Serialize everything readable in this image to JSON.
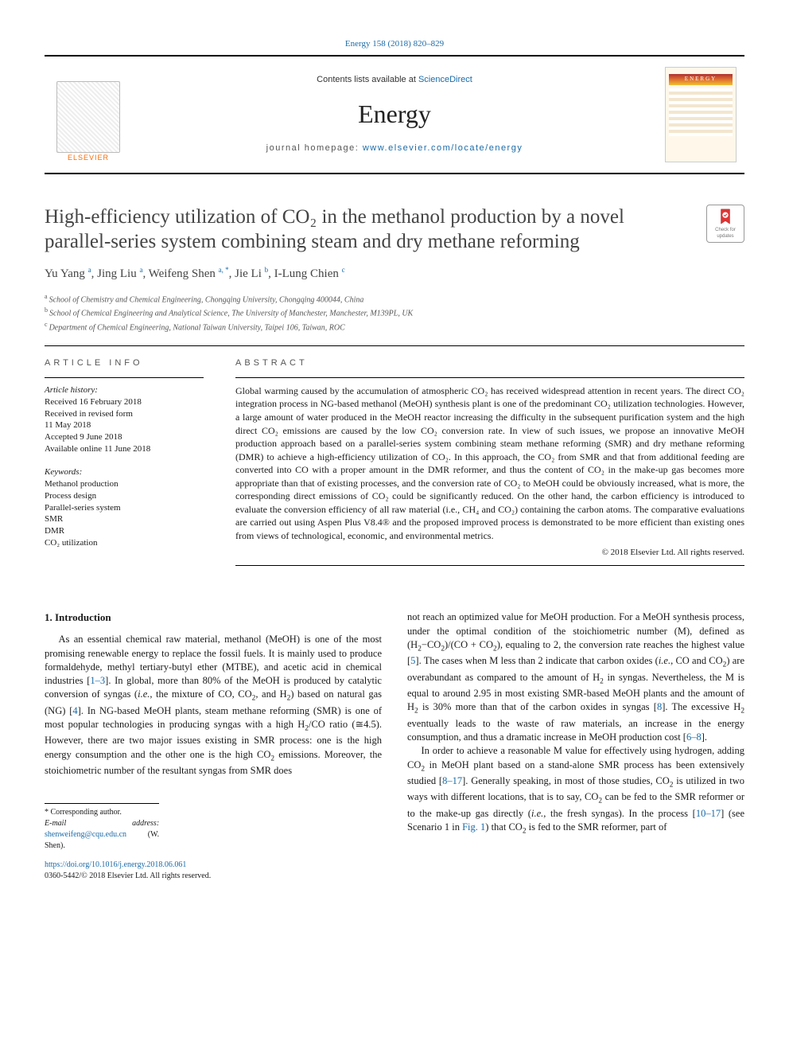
{
  "citation": "Energy 158 (2018) 820–829",
  "masthead": {
    "contents_prefix": "Contents lists available at ",
    "contents_link": "ScienceDirect",
    "journal": "Energy",
    "homepage_prefix": "journal homepage: ",
    "homepage_url": "www.elsevier.com/locate/energy",
    "publisher_word": "ELSEVIER",
    "cover_word": "ENERGY"
  },
  "check_badge": {
    "line1": "Check for",
    "line2": "updates"
  },
  "title": "High-efficiency utilization of CO₂ in the methanol production by a novel parallel-series system combining steam and dry methane reforming",
  "authors_html": "Yu Yang <sup>a</sup>, Jing Liu <sup>a</sup>, Weifeng Shen <sup>a, <span class='ast'>*</span></sup>, Jie Li <sup>b</sup>, I-Lung Chien <sup>c</sup>",
  "affiliations": [
    {
      "tag": "a",
      "text": "School of Chemistry and Chemical Engineering, Chongqing University, Chongqing 400044, China"
    },
    {
      "tag": "b",
      "text": "School of Chemical Engineering and Analytical Science, The University of Manchester, Manchester, M139PL, UK"
    },
    {
      "tag": "c",
      "text": "Department of Chemical Engineering, National Taiwan University, Taipei 106, Taiwan, ROC"
    }
  ],
  "article_info": {
    "heading": "ARTICLE INFO",
    "history_label": "Article history:",
    "history": [
      "Received 16 February 2018",
      "Received in revised form",
      "11 May 2018",
      "Accepted 9 June 2018",
      "Available online 11 June 2018"
    ],
    "keywords_label": "Keywords:",
    "keywords": [
      "Methanol production",
      "Process design",
      "Parallel-series system",
      "SMR",
      "DMR",
      "CO₂ utilization"
    ]
  },
  "abstract": {
    "heading": "ABSTRACT",
    "body": "Global warming caused by the accumulation of atmospheric CO₂ has received widespread attention in recent years. The direct CO₂ integration process in NG-based methanol (MeOH) synthesis plant is one of the predominant CO₂ utilization technologies. However, a large amount of water produced in the MeOH reactor increasing the difficulty in the subsequent purification system and the high direct CO₂ emissions are caused by the low CO₂ conversion rate. In view of such issues, we propose an innovative MeOH production approach based on a parallel-series system combining steam methane reforming (SMR) and dry methane reforming (DMR) to achieve a high-efficiency utilization of CO₂. In this approach, the CO₂ from SMR and that from additional feeding are converted into CO with a proper amount in the DMR reformer, and thus the content of CO₂ in the make-up gas becomes more appropriate than that of existing processes, and the conversion rate of CO₂ to MeOH could be obviously increased, what is more, the corresponding direct emissions of CO₂ could be significantly reduced. On the other hand, the carbon efficiency is introduced to evaluate the conversion efficiency of all raw material (i.e., CH₄ and CO₂) containing the carbon atoms. The comparative evaluations are carried out using Aspen Plus V8.4® and the proposed improved process is demonstrated to be more efficient than existing ones from views of technological, economic, and environmental metrics.",
    "copyright": "© 2018 Elsevier Ltd. All rights reserved."
  },
  "intro": {
    "heading": "1.  Introduction",
    "col1_html": "As an essential chemical raw material, methanol (MeOH) is one of the most promising renewable energy to replace the fossil fuels. It is mainly used to produce formaldehyde, methyl tertiary-butyl ether (MTBE), and acetic acid in chemical industries [<span class='ref'>1–3</span>]. In global, more than 80% of the MeOH is produced by catalytic conversion of syngas (<i>i.e.</i>, the mixture of CO, CO<sub>2</sub>, and H<sub>2</sub>) based on natural gas (NG) [<span class='ref'>4</span>]. In NG-based MeOH plants, steam methane reforming (SMR) is one of most popular technologies in producing syngas with a high H<sub>2</sub>/CO ratio (≅4.5). However, there are two major issues existing in SMR process: one is the high energy consumption and the other one is the high CO<sub>2</sub> emissions. Moreover, the stoichiometric number of the resultant syngas from SMR does",
    "col2_p1_html": "not reach an optimized value for MeOH production. For a MeOH synthesis process, under the optimal condition of the stoichiometric number (M), defined as (H<sub>2</sub>−CO<sub>2</sub>)/(CO + CO<sub>2</sub>), equaling to 2, the conversion rate reaches the highest value [<span class='ref'>5</span>]. The cases when M less than 2 indicate that carbon oxides (<i>i.e.</i>, CO and CO<sub>2</sub>) are overabundant as compared to the amount of H<sub>2</sub> in syngas. Nevertheless, the M is equal to around 2.95 in most existing SMR-based MeOH plants and the amount of H<sub>2</sub> is 30% more than that of the carbon oxides in syngas [<span class='ref'>8</span>]. The excessive H<sub>2</sub> eventually leads to the waste of raw materials, an increase in the energy consumption, and thus a dramatic increase in MeOH production cost [<span class='ref'>6–8</span>].",
    "col2_p2_html": "In order to achieve a reasonable M value for effectively using hydrogen, adding CO<sub>2</sub> in MeOH plant based on a stand-alone SMR process has been extensively studied [<span class='ref'>8–17</span>]. Generally speaking, in most of those studies, CO<sub>2</sub> is utilized in two ways with different locations, that is to say, CO<sub>2</sub> can be fed to the SMR reformer or to the make-up gas directly (<i>i.e.</i>, the fresh syngas). In the process [<span class='ref'>10–17</span>] (see Scenario 1 in <span class='ref'>Fig. 1</span>) that CO<sub>2</sub> is fed to the SMR reformer, part of"
  },
  "footnote": {
    "corr": "* Corresponding author.",
    "email_label": "E-mail address: ",
    "email": "shenweifeng@cqu.edu.cn",
    "email_paren": " (W. Shen)."
  },
  "doi": {
    "url": "https://doi.org/10.1016/j.energy.2018.06.061",
    "issn_line": "0360-5442/© 2018 Elsevier Ltd. All rights reserved."
  },
  "colors": {
    "link": "#1a6ba8",
    "text": "#1a1a1a",
    "elsevier_orange": "#ff6a00"
  }
}
